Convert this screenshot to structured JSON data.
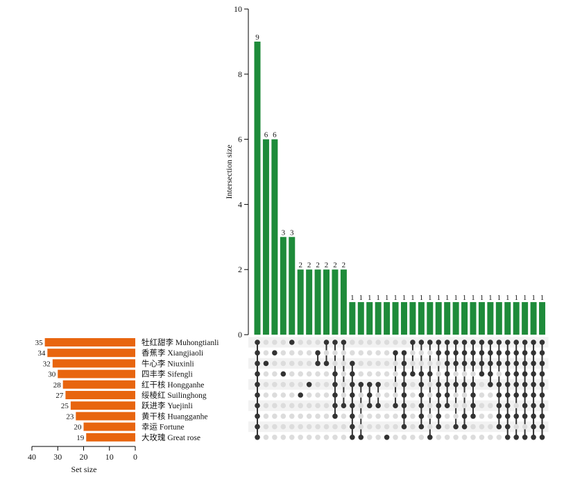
{
  "chart_data": {
    "type": "bar",
    "subtype": "upset",
    "intersection_axis": {
      "label": "Intersection size",
      "ylim": [
        0,
        10
      ],
      "ticks": [
        "0",
        "2",
        "4",
        "6",
        "8",
        "10"
      ]
    },
    "set_size_axis": {
      "label": "Set size",
      "xlim": [
        40,
        0
      ],
      "ticks": [
        "40",
        "30",
        "20",
        "10",
        "0"
      ]
    },
    "sets": [
      {
        "name": "牡红甜李 Muhongtianli",
        "size": 35
      },
      {
        "name": "香蕉李 Xiangjiaoli",
        "size": 34
      },
      {
        "name": "牛心李 Niuxinli",
        "size": 32
      },
      {
        "name": "四丰李 Sifengli",
        "size": 30
      },
      {
        "name": "红干核 Hongganhe",
        "size": 28
      },
      {
        "name": "绥棱红 Suilinghong",
        "size": 27
      },
      {
        "name": "跃进李 Yuejinli",
        "size": 25
      },
      {
        "name": "黄干核 Huangganhe",
        "size": 23
      },
      {
        "name": "幸运 Fortune",
        "size": 20
      },
      {
        "name": "大玫瑰 Great rose",
        "size": 19
      }
    ],
    "intersections": [
      {
        "size": 9,
        "sets": [
          0,
          1,
          2,
          3,
          4,
          5,
          6,
          7,
          8,
          9
        ]
      },
      {
        "size": 6,
        "sets": [
          2
        ]
      },
      {
        "size": 6,
        "sets": [
          1
        ]
      },
      {
        "size": 3,
        "sets": [
          3
        ]
      },
      {
        "size": 3,
        "sets": [
          0
        ]
      },
      {
        "size": 2,
        "sets": [
          5
        ]
      },
      {
        "size": 2,
        "sets": [
          4
        ]
      },
      {
        "size": 2,
        "sets": [
          1,
          2
        ]
      },
      {
        "size": 2,
        "sets": [
          0,
          2
        ]
      },
      {
        "size": 2,
        "sets": [
          0,
          3,
          4,
          5,
          6,
          7
        ]
      },
      {
        "size": 2,
        "sets": [
          0,
          6
        ]
      },
      {
        "size": 1,
        "sets": [
          2,
          3,
          4,
          5,
          6,
          7,
          8,
          9
        ]
      },
      {
        "size": 1,
        "sets": [
          4,
          9
        ]
      },
      {
        "size": 1,
        "sets": [
          4,
          5,
          6
        ]
      },
      {
        "size": 1,
        "sets": [
          4,
          6
        ]
      },
      {
        "size": 1,
        "sets": [
          9
        ]
      },
      {
        "size": 1,
        "sets": [
          1,
          6
        ]
      },
      {
        "size": 1,
        "sets": [
          1,
          2,
          3,
          4,
          5,
          6,
          7,
          8
        ]
      },
      {
        "size": 1,
        "sets": [
          0,
          3
        ]
      },
      {
        "size": 1,
        "sets": [
          0,
          3,
          4,
          5,
          6,
          7,
          8
        ]
      },
      {
        "size": 1,
        "sets": [
          0,
          3,
          9
        ]
      },
      {
        "size": 1,
        "sets": [
          0,
          1,
          4,
          5,
          6,
          7,
          8
        ]
      },
      {
        "size": 1,
        "sets": [
          0,
          1,
          2,
          3,
          4,
          5,
          6
        ]
      },
      {
        "size": 1,
        "sets": [
          0,
          1,
          2,
          4,
          8
        ]
      },
      {
        "size": 1,
        "sets": [
          0,
          1,
          2,
          4,
          7,
          8
        ]
      },
      {
        "size": 1,
        "sets": [
          0,
          1,
          2,
          4,
          5,
          6,
          7
        ]
      },
      {
        "size": 1,
        "sets": [
          0,
          1,
          2,
          3
        ]
      },
      {
        "size": 1,
        "sets": [
          0,
          1,
          2,
          3,
          4
        ]
      },
      {
        "size": 1,
        "sets": [
          0,
          1,
          2,
          4,
          5,
          6,
          7,
          8
        ]
      },
      {
        "size": 1,
        "sets": [
          0,
          1,
          2,
          3,
          4,
          5,
          6,
          7,
          8,
          9
        ]
      },
      {
        "size": 1,
        "sets": [
          0,
          1,
          2,
          3,
          4,
          5,
          7,
          9
        ]
      },
      {
        "size": 1,
        "sets": [
          0,
          1,
          2,
          3,
          4,
          5,
          6,
          7,
          9
        ]
      },
      {
        "size": 1,
        "sets": [
          0,
          1,
          2,
          3,
          4,
          5,
          6,
          7,
          8,
          9
        ]
      },
      {
        "size": 1,
        "sets": [
          0,
          1,
          2,
          3,
          4,
          5,
          6,
          7,
          8,
          9
        ]
      }
    ],
    "colors": {
      "intersection_bar": "#1e8b3a",
      "set_bar": "#e8650f",
      "dot_active": "#333333",
      "dot_inactive": "#dcdcdc",
      "row_stripe": "#f2f2f2"
    },
    "grid": false
  }
}
